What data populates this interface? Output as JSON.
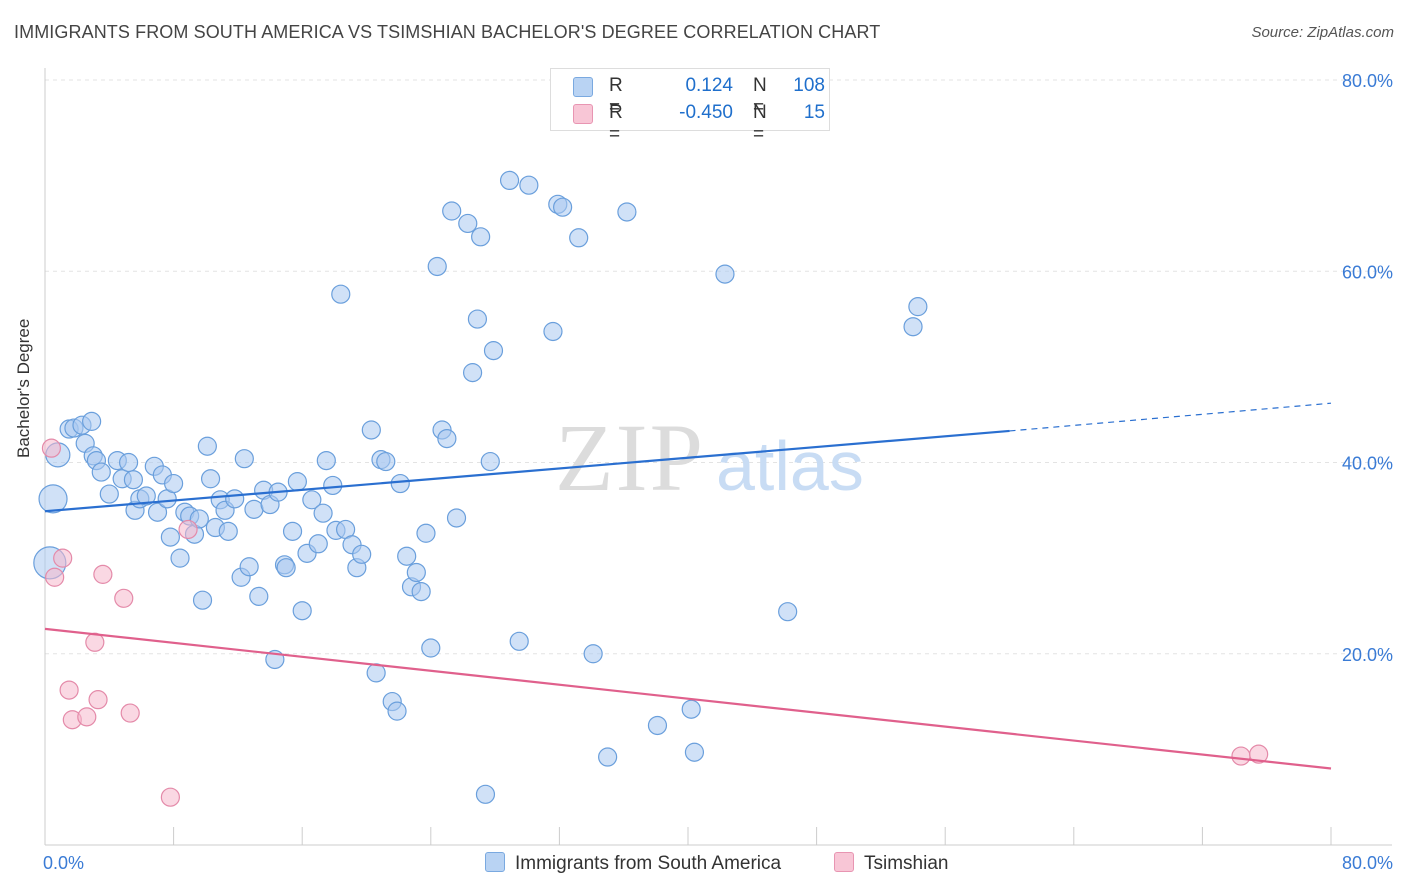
{
  "title": "IMMIGRANTS FROM SOUTH AMERICA VS TSIMSHIAN BACHELOR'S DEGREE CORRELATION CHART",
  "source": "Source: ZipAtlas.com",
  "watermark": {
    "zip": "ZIP",
    "atlas": "atlas"
  },
  "legend_top": {
    "series1": {
      "r_label": "R =",
      "r_value": "0.124",
      "n_label": "N =",
      "n_value": "108"
    },
    "series2": {
      "r_label": "R =",
      "r_value": "-0.450",
      "n_label": "N =",
      "n_value": "15"
    }
  },
  "legend_bottom": {
    "series1": "Immigrants from South America",
    "series2": "Tsimshian"
  },
  "colors": {
    "series1_fill": "#a9c8f0",
    "series1_stroke": "#6a9fdc",
    "series1_line": "#2a6fd0",
    "series2_fill": "#f5b8cc",
    "series2_stroke": "#e48aa9",
    "series2_line": "#e0608c",
    "axis_label": "#3a7bd5",
    "grid": "#e3e3e3"
  },
  "chart_data": {
    "type": "scatter",
    "title": "IMMIGRANTS FROM SOUTH AMERICA VS TSIMSHIAN BACHELOR'S DEGREE CORRELATION CHART",
    "xlabel": "",
    "ylabel": "Bachelor's Degree",
    "xlim": [
      0,
      80
    ],
    "ylim": [
      0,
      80
    ],
    "x_tick_labels": [
      "0.0%",
      "80.0%"
    ],
    "y_tick_labels": [
      "20.0%",
      "40.0%",
      "60.0%",
      "80.0%"
    ],
    "y_ticks": [
      20,
      40,
      60,
      80
    ],
    "series": [
      {
        "name": "Immigrants from South America",
        "R": 0.124,
        "N": 108,
        "trend": {
          "x0": 0,
          "y0": 34.9,
          "x1": 60,
          "y1": 43.3,
          "dashed_to_x": 80,
          "dashed_to_y": 46.2
        },
        "points": [
          [
            0.5,
            36.2,
            14
          ],
          [
            0.8,
            40.8,
            12
          ],
          [
            1.5,
            43.5,
            9
          ],
          [
            1.8,
            43.6,
            9
          ],
          [
            2.3,
            43.9,
            9
          ],
          [
            2.5,
            42.0,
            9
          ],
          [
            2.9,
            44.3,
            9
          ],
          [
            3.0,
            40.7,
            9
          ],
          [
            3.2,
            40.2,
            9
          ],
          [
            3.5,
            39.0,
            9
          ],
          [
            4.0,
            36.7,
            9
          ],
          [
            4.5,
            40.2,
            9
          ],
          [
            4.8,
            38.3,
            9
          ],
          [
            5.2,
            40.0,
            9
          ],
          [
            5.5,
            38.2,
            9
          ],
          [
            5.6,
            35.0,
            9
          ],
          [
            5.9,
            36.2,
            9
          ],
          [
            6.3,
            36.5,
            9
          ],
          [
            6.8,
            39.6,
            9
          ],
          [
            7.0,
            34.8,
            9
          ],
          [
            7.3,
            38.7,
            9
          ],
          [
            7.6,
            36.2,
            9
          ],
          [
            7.8,
            32.2,
            9
          ],
          [
            8.0,
            37.8,
            9
          ],
          [
            8.4,
            30.0,
            9
          ],
          [
            8.7,
            34.8,
            9
          ],
          [
            9.0,
            34.4,
            9
          ],
          [
            9.3,
            32.5,
            9
          ],
          [
            9.6,
            34.1,
            9
          ],
          [
            9.8,
            25.6,
            9
          ],
          [
            10.1,
            41.7,
            9
          ],
          [
            10.3,
            38.3,
            9
          ],
          [
            10.6,
            33.2,
            9
          ],
          [
            10.9,
            36.1,
            9
          ],
          [
            11.2,
            35.0,
            9
          ],
          [
            11.4,
            32.8,
            9
          ],
          [
            11.8,
            36.2,
            9
          ],
          [
            12.2,
            28.0,
            9
          ],
          [
            12.4,
            40.4,
            9
          ],
          [
            12.7,
            29.1,
            9
          ],
          [
            13.0,
            35.1,
            9
          ],
          [
            13.3,
            26.0,
            9
          ],
          [
            13.6,
            37.1,
            9
          ],
          [
            14.0,
            35.6,
            9
          ],
          [
            14.3,
            19.4,
            9
          ],
          [
            14.5,
            36.9,
            9
          ],
          [
            14.9,
            29.3,
            9
          ],
          [
            15.0,
            29.0,
            9
          ],
          [
            15.4,
            32.8,
            9
          ],
          [
            15.7,
            38.0,
            9
          ],
          [
            16.0,
            24.5,
            9
          ],
          [
            16.3,
            30.5,
            9
          ],
          [
            16.6,
            36.1,
            9
          ],
          [
            17.0,
            31.5,
            9
          ],
          [
            17.3,
            34.7,
            9
          ],
          [
            17.5,
            40.2,
            9
          ],
          [
            17.9,
            37.6,
            9
          ],
          [
            18.1,
            32.9,
            9
          ],
          [
            18.4,
            57.6,
            9
          ],
          [
            18.7,
            33.0,
            9
          ],
          [
            19.1,
            31.4,
            9
          ],
          [
            19.4,
            29.0,
            9
          ],
          [
            19.7,
            30.4,
            9
          ],
          [
            20.3,
            43.4,
            9
          ],
          [
            20.6,
            18.0,
            9
          ],
          [
            20.9,
            40.3,
            9
          ],
          [
            21.2,
            40.1,
            9
          ],
          [
            21.6,
            15.0,
            9
          ],
          [
            21.9,
            14.0,
            9
          ],
          [
            22.1,
            37.8,
            9
          ],
          [
            22.5,
            30.2,
            9
          ],
          [
            22.8,
            27.0,
            9
          ],
          [
            23.1,
            28.5,
            9
          ],
          [
            23.4,
            26.5,
            9
          ],
          [
            23.7,
            32.6,
            9
          ],
          [
            24.0,
            20.6,
            9
          ],
          [
            24.4,
            60.5,
            9
          ],
          [
            24.7,
            43.4,
            9
          ],
          [
            25.0,
            42.5,
            9
          ],
          [
            25.3,
            66.3,
            9
          ],
          [
            25.6,
            34.2,
            9
          ],
          [
            26.3,
            65.0,
            9
          ],
          [
            26.6,
            49.4,
            9
          ],
          [
            26.9,
            55.0,
            9
          ],
          [
            27.1,
            63.6,
            9
          ],
          [
            27.4,
            5.3,
            9
          ],
          [
            27.7,
            40.1,
            9
          ],
          [
            27.9,
            51.7,
            9
          ],
          [
            28.9,
            69.5,
            9
          ],
          [
            29.5,
            21.3,
            9
          ],
          [
            30.1,
            69.0,
            9
          ],
          [
            31.6,
            53.7,
            9
          ],
          [
            31.9,
            67.0,
            9
          ],
          [
            32.2,
            66.7,
            9
          ],
          [
            33.2,
            63.5,
            9
          ],
          [
            34.1,
            20.0,
            9
          ],
          [
            35.0,
            9.2,
            9
          ],
          [
            36.2,
            66.2,
            9
          ],
          [
            38.1,
            12.5,
            9
          ],
          [
            40.2,
            14.2,
            9
          ],
          [
            40.4,
            9.7,
            9
          ],
          [
            42.3,
            59.7,
            9
          ],
          [
            46.2,
            24.4,
            9
          ],
          [
            54.0,
            54.2,
            9
          ],
          [
            54.3,
            56.3,
            9
          ],
          [
            0.3,
            29.5,
            16
          ]
        ]
      },
      {
        "name": "Tsimshian",
        "R": -0.45,
        "N": 15,
        "trend": {
          "x0": 0,
          "y0": 22.6,
          "x1": 80,
          "y1": 8.0
        },
        "points": [
          [
            0.4,
            41.5,
            9
          ],
          [
            0.6,
            28.0,
            9
          ],
          [
            1.1,
            30.0,
            9
          ],
          [
            1.5,
            16.2,
            9
          ],
          [
            1.7,
            13.1,
            9
          ],
          [
            2.6,
            13.4,
            9
          ],
          [
            3.1,
            21.2,
            9
          ],
          [
            3.3,
            15.2,
            9
          ],
          [
            3.6,
            28.3,
            9
          ],
          [
            4.9,
            25.8,
            9
          ],
          [
            5.3,
            13.8,
            9
          ],
          [
            7.8,
            5.0,
            9
          ],
          [
            8.9,
            33.0,
            9
          ],
          [
            74.4,
            9.3,
            9
          ],
          [
            75.5,
            9.5,
            9
          ]
        ]
      }
    ]
  }
}
